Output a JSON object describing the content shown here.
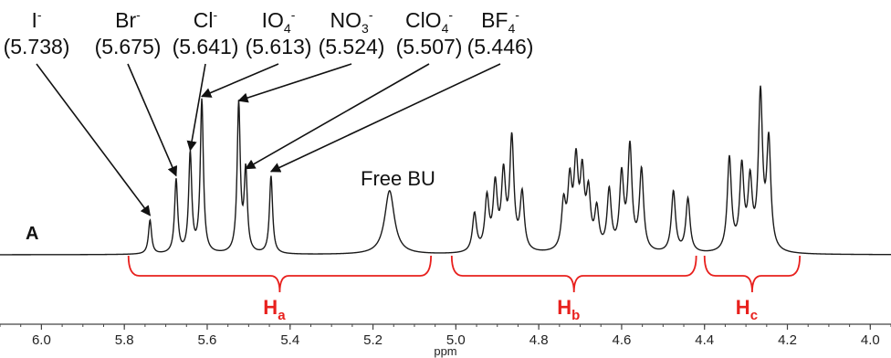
{
  "chart_data": {
    "type": "line",
    "trace_label": "A",
    "xlabel": "ppm",
    "xlim": [
      6.1,
      3.95
    ],
    "x_reversed": true,
    "x_ticks": [
      "6.0",
      "5.8",
      "5.6",
      "5.4",
      "5.2",
      "5.0",
      "4.8",
      "4.6",
      "4.4",
      "4.2",
      "4.0"
    ],
    "anion_peaks": [
      {
        "anion": "I",
        "sub": "",
        "sup": "-",
        "shift_label": "(5.738)",
        "ppm": 5.738,
        "height": 0.24
      },
      {
        "anion": "Br",
        "sub": "",
        "sup": "-",
        "shift_label": "(5.675)",
        "ppm": 5.675,
        "height": 0.52
      },
      {
        "anion": "Cl",
        "sub": "",
        "sup": "-",
        "shift_label": "(5.641)",
        "ppm": 5.641,
        "height": 0.7
      },
      {
        "anion": "IO",
        "sub": "4",
        "sup": "-",
        "shift_label": "(5.613)",
        "ppm": 5.613,
        "height": 1.08
      },
      {
        "anion": "NO",
        "sub": "3",
        "sup": "-",
        "shift_label": "(5.524)",
        "ppm": 5.524,
        "height": 1.05
      },
      {
        "anion": "ClO",
        "sub": "4",
        "sup": "-",
        "shift_label": "(5.507)",
        "ppm": 5.507,
        "height": 0.57
      },
      {
        "anion": "BF",
        "sub": "4",
        "sup": "-",
        "shift_label": "(5.446)",
        "ppm": 5.446,
        "height": 0.55
      }
    ],
    "annotations": {
      "free_bu": "Free BU",
      "free_bu_ppm": 5.16
    },
    "other_peaks": [
      {
        "ppm": 5.16,
        "height": 0.45,
        "width": 0.014
      },
      {
        "ppm": 4.955,
        "height": 0.27,
        "width": 0.006
      },
      {
        "ppm": 4.925,
        "height": 0.37,
        "width": 0.006
      },
      {
        "ppm": 4.905,
        "height": 0.45,
        "width": 0.006
      },
      {
        "ppm": 4.885,
        "height": 0.52,
        "width": 0.006
      },
      {
        "ppm": 4.865,
        "height": 0.78,
        "width": 0.006
      },
      {
        "ppm": 4.84,
        "height": 0.4,
        "width": 0.006
      },
      {
        "ppm": 4.74,
        "height": 0.32,
        "width": 0.006
      },
      {
        "ppm": 4.725,
        "height": 0.45,
        "width": 0.006
      },
      {
        "ppm": 4.71,
        "height": 0.58,
        "width": 0.006
      },
      {
        "ppm": 4.695,
        "height": 0.5,
        "width": 0.006
      },
      {
        "ppm": 4.68,
        "height": 0.38,
        "width": 0.006
      },
      {
        "ppm": 4.66,
        "height": 0.28,
        "width": 0.006
      },
      {
        "ppm": 4.63,
        "height": 0.42,
        "width": 0.006
      },
      {
        "ppm": 4.6,
        "height": 0.52,
        "width": 0.006
      },
      {
        "ppm": 4.58,
        "height": 0.72,
        "width": 0.006
      },
      {
        "ppm": 4.552,
        "height": 0.57,
        "width": 0.006
      },
      {
        "ppm": 4.475,
        "height": 0.43,
        "width": 0.006
      },
      {
        "ppm": 4.44,
        "height": 0.38,
        "width": 0.006
      },
      {
        "ppm": 4.34,
        "height": 0.66,
        "width": 0.006
      },
      {
        "ppm": 4.31,
        "height": 0.58,
        "width": 0.006
      },
      {
        "ppm": 4.29,
        "height": 0.47,
        "width": 0.006
      },
      {
        "ppm": 4.265,
        "height": 1.09,
        "width": 0.006
      },
      {
        "ppm": 4.245,
        "height": 0.76,
        "width": 0.006
      }
    ],
    "regions": [
      {
        "name": "H",
        "sub": "a",
        "from_ppm": 5.79,
        "to_ppm": 5.06
      },
      {
        "name": "H",
        "sub": "b",
        "from_ppm": 5.01,
        "to_ppm": 4.42
      },
      {
        "name": "H",
        "sub": "c",
        "from_ppm": 4.4,
        "to_ppm": 4.17
      }
    ],
    "colors": {
      "trace": "#1a1a1a",
      "region": "#e8201d",
      "arrow": "#111111"
    }
  }
}
